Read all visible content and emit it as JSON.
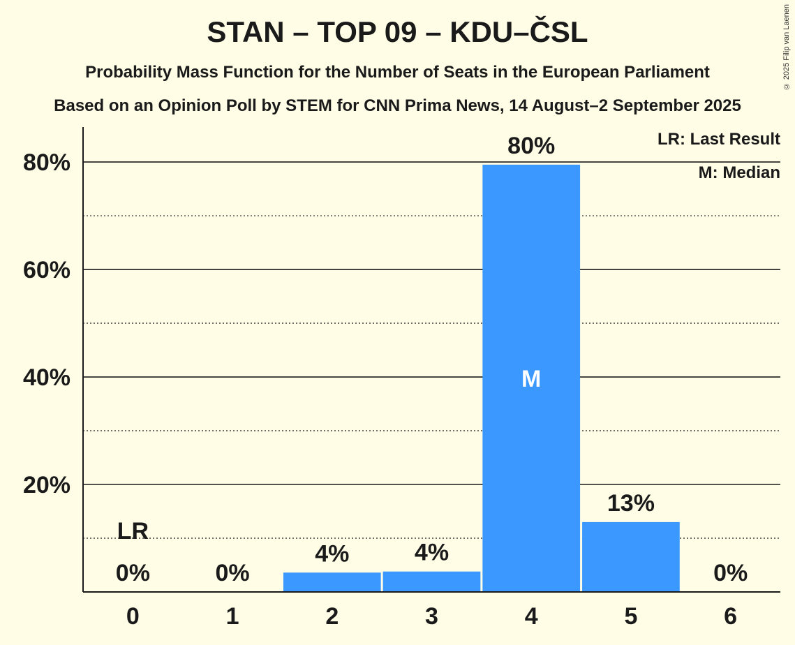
{
  "chart_data": {
    "type": "bar",
    "title": "STAN – TOP 09 – KDU–ČSL",
    "subtitle": "Probability Mass Function for the Number of Seats in the European Parliament",
    "subtitle2": "Based on an Opinion Poll by STEM for CNN Prima News, 14 August–2 September 2025",
    "categories": [
      "0",
      "1",
      "2",
      "3",
      "4",
      "5",
      "6"
    ],
    "values": [
      0,
      0,
      3.6,
      3.8,
      79.5,
      13.0,
      0
    ],
    "value_labels": [
      "0%",
      "0%",
      "4%",
      "4%",
      "80%",
      "13%",
      "0%"
    ],
    "y_ticks": [
      20,
      40,
      60,
      80
    ],
    "y_tick_labels": [
      "20%",
      "40%",
      "60%",
      "80%"
    ],
    "ylim": [
      0,
      86.5
    ],
    "xlabel": "",
    "ylabel": "",
    "last_result_seat": 0,
    "last_result_label": "LR",
    "median_seat": 4,
    "median_label": "M",
    "legend": {
      "last_result": "LR: Last Result",
      "median": "M: Median"
    },
    "bar_color": "#3a98ff"
  },
  "copyright": "© 2025 Filip van Laenen"
}
